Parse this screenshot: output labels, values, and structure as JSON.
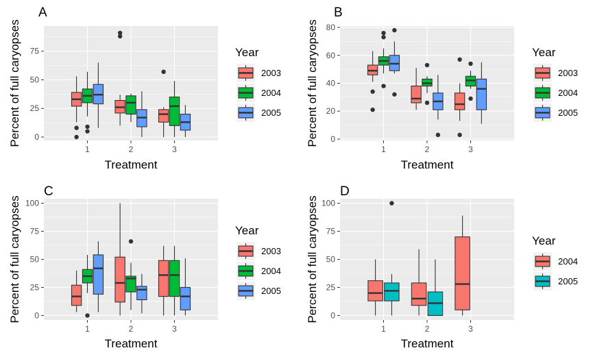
{
  "colors": {
    "2003": "#F8766D",
    "2004": "#00BA38",
    "2005": "#619CFF",
    "D-2004": "#F8766D",
    "D-2005": "#00BFC4"
  },
  "chart_data": [
    {
      "type": "box",
      "tag": "A",
      "xlabel": "Treatment",
      "ylabel": "Percent of full caryopses",
      "categories": [
        "1",
        "2",
        "3"
      ],
      "yticks": [
        0,
        25,
        50,
        75
      ],
      "ylim": [
        -3,
        97
      ],
      "legend": {
        "title": "Year",
        "position": "right"
      },
      "series": [
        {
          "name": "2003",
          "color_key": "2003",
          "boxes": [
            {
              "min": 13,
              "q1": 27,
              "median": 33,
              "q3": 39,
              "max": 53,
              "outliers": [
                0,
                8
              ]
            },
            {
              "min": 10,
              "q1": 21,
              "median": 26,
              "q3": 32,
              "max": 37,
              "outliers": [
                88,
                91
              ]
            },
            {
              "min": 0,
              "q1": 13,
              "median": 20,
              "q3": 24,
              "max": 26,
              "outliers": [
                57
              ]
            }
          ]
        },
        {
          "name": "2004",
          "color_key": "2004",
          "boxes": [
            {
              "min": 18,
              "q1": 30,
              "median": 36,
              "q3": 42,
              "max": 57,
              "outliers": [
                5,
                9
              ]
            },
            {
              "min": 13,
              "q1": 20,
              "median": 30,
              "q3": 36,
              "max": 38,
              "outliers": []
            },
            {
              "min": 0,
              "q1": 10,
              "median": 27,
              "q3": 35,
              "max": 49,
              "outliers": []
            }
          ]
        },
        {
          "name": "2005",
          "color_key": "2005",
          "boxes": [
            {
              "min": 8,
              "q1": 29,
              "median": 37,
              "q3": 46,
              "max": 65,
              "outliers": []
            },
            {
              "min": 0,
              "q1": 9,
              "median": 17,
              "q3": 24,
              "max": 40,
              "outliers": []
            },
            {
              "min": 0,
              "q1": 6,
              "median": 13,
              "q3": 20,
              "max": 28,
              "outliers": []
            }
          ]
        }
      ]
    },
    {
      "type": "box",
      "tag": "B",
      "xlabel": "Treatment",
      "ylabel": "Percent of full caryopses",
      "categories": [
        "1",
        "2",
        "3"
      ],
      "yticks": [
        0,
        20,
        40,
        60,
        80
      ],
      "ylim": [
        -1,
        81
      ],
      "legend": {
        "title": "Year",
        "position": "right"
      },
      "series": [
        {
          "name": "2003",
          "color_key": "2003",
          "boxes": [
            {
              "min": 41,
              "q1": 46,
              "median": 49,
              "q3": 53,
              "max": 63,
              "outliers": [
                21,
                34
              ]
            },
            {
              "min": 21,
              "q1": 26,
              "median": 29,
              "q3": 38,
              "max": 51,
              "outliers": []
            },
            {
              "min": 13,
              "q1": 21,
              "median": 25,
              "q3": 33,
              "max": 40,
              "outliers": [
                3,
                57
              ]
            }
          ]
        },
        {
          "name": "2004",
          "color_key": "2004",
          "boxes": [
            {
              "min": 47,
              "q1": 53,
              "median": 56,
              "q3": 59,
              "max": 65,
              "outliers": [
                38,
                73,
                76
              ]
            },
            {
              "min": 33,
              "q1": 38,
              "median": 40,
              "q3": 43,
              "max": 45,
              "outliers": [
                26,
                53
              ]
            },
            {
              "min": 36,
              "q1": 38,
              "median": 42,
              "q3": 45,
              "max": 49,
              "outliers": [
                29,
                54
              ]
            }
          ]
        },
        {
          "name": "2005",
          "color_key": "2005",
          "boxes": [
            {
              "min": 47,
              "q1": 49,
              "median": 54,
              "q3": 60,
              "max": 70,
              "outliers": [
                32,
                78
              ]
            },
            {
              "min": 14,
              "q1": 21,
              "median": 27,
              "q3": 33,
              "max": 46,
              "outliers": [
                3
              ]
            },
            {
              "min": 11,
              "q1": 21,
              "median": 36,
              "q3": 43,
              "max": 55,
              "outliers": []
            }
          ]
        }
      ]
    },
    {
      "type": "box",
      "tag": "C",
      "xlabel": "Treatment",
      "ylabel": "Percent of full caryopses",
      "categories": [
        "1",
        "2",
        "3"
      ],
      "yticks": [
        0,
        25,
        50,
        75,
        100
      ],
      "ylim": [
        -4,
        104
      ],
      "legend": {
        "title": "Year",
        "position": "right"
      },
      "series": [
        {
          "name": "2003",
          "color_key": "2003",
          "boxes": [
            {
              "min": 3,
              "q1": 9,
              "median": 17,
              "q3": 27,
              "max": 40,
              "outliers": []
            },
            {
              "min": 0,
              "q1": 12,
              "median": 29,
              "q3": 52,
              "max": 100,
              "outliers": []
            },
            {
              "min": 0,
              "q1": 17,
              "median": 36,
              "q3": 49,
              "max": 62,
              "outliers": []
            }
          ]
        },
        {
          "name": "2004",
          "color_key": "2004",
          "boxes": [
            {
              "min": 20,
              "q1": 29,
              "median": 35,
              "q3": 41,
              "max": 54,
              "outliers": [
                0
              ]
            },
            {
              "min": 5,
              "q1": 21,
              "median": 33,
              "q3": 35,
              "max": 47,
              "outliers": [
                66
              ]
            },
            {
              "min": 0,
              "q1": 17,
              "median": 36,
              "q3": 49,
              "max": 62,
              "outliers": []
            }
          ]
        },
        {
          "name": "2005",
          "color_key": "2005",
          "boxes": [
            {
              "min": 3,
              "q1": 19,
              "median": 42,
              "q3": 54,
              "max": 66,
              "outliers": []
            },
            {
              "min": 2,
              "q1": 14,
              "median": 23,
              "q3": 26,
              "max": 37,
              "outliers": []
            },
            {
              "min": 0,
              "q1": 5,
              "median": 17,
              "q3": 25,
              "max": 51,
              "outliers": []
            }
          ]
        }
      ]
    },
    {
      "type": "box",
      "tag": "D",
      "xlabel": "Treatment",
      "ylabel": "Percent of full caryopses",
      "categories": [
        "1",
        "2",
        "3"
      ],
      "yticks": [
        0,
        25,
        50,
        75,
        100
      ],
      "ylim": [
        -4,
        104
      ],
      "legend": {
        "title": "Year",
        "position": "right"
      },
      "series": [
        {
          "name": "2004",
          "color_key": "D-2004",
          "boxes": [
            {
              "min": 0,
              "q1": 13,
              "median": 20,
              "q3": 31,
              "max": 50,
              "outliers": []
            },
            {
              "min": 0,
              "q1": 9,
              "median": 15,
              "q3": 29,
              "max": 59,
              "outliers": []
            },
            {
              "min": 0,
              "q1": 5,
              "median": 28,
              "q3": 70,
              "max": 89,
              "outliers": []
            }
          ]
        },
        {
          "name": "2005",
          "color_key": "D-2005",
          "boxes": [
            {
              "min": 0,
              "q1": 13,
              "median": 22,
              "q3": 29,
              "max": 37,
              "outliers": [
                100
              ]
            },
            {
              "min": 0,
              "q1": 0,
              "median": 11,
              "q3": 21,
              "max": 50,
              "outliers": []
            },
            null
          ]
        }
      ]
    }
  ]
}
